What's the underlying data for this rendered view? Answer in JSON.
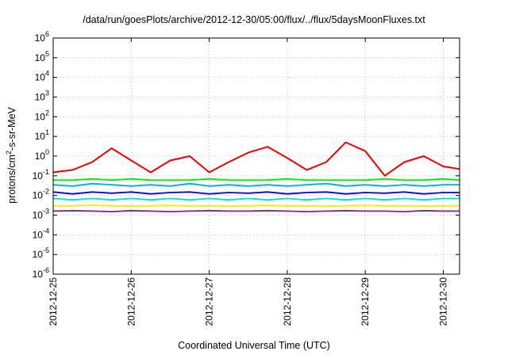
{
  "chart_data": {
    "type": "line",
    "title": "/data/run/goesPlots/archive/2012-12-30/05:00/flux/../flux/5daysMoonFluxes.txt",
    "xlabel": "Coordinated Universal Time (UTC)",
    "ylabel": "protons/cm2-s-sr-MeV",
    "yscale": "log",
    "ylim": [
      1e-06,
      1000000.0
    ],
    "xlim": [
      "2012-12-25T00:00",
      "2012-12-30T05:00"
    ],
    "grid": true,
    "x_ticks": [
      "2012-12-25",
      "2012-12-26",
      "2012-12-27",
      "2012-12-28",
      "2012-12-29",
      "2012-12-30"
    ],
    "y_ticks": [
      {
        "base": "10",
        "exp": "-6"
      },
      {
        "base": "10",
        "exp": "-5"
      },
      {
        "base": "10",
        "exp": "-4"
      },
      {
        "base": "10",
        "exp": "-3"
      },
      {
        "base": "10",
        "exp": "-2"
      },
      {
        "base": "10",
        "exp": "-1"
      },
      {
        "base": "10",
        "exp": "0"
      },
      {
        "base": "10",
        "exp": "1"
      },
      {
        "base": "10",
        "exp": "2"
      },
      {
        "base": "10",
        "exp": "3"
      },
      {
        "base": "10",
        "exp": "4"
      },
      {
        "base": "10",
        "exp": "5"
      },
      {
        "base": "10",
        "exp": "6"
      }
    ],
    "x": [
      "2012-12-25T00:00",
      "2012-12-25T06:00",
      "2012-12-25T12:00",
      "2012-12-25T18:00",
      "2012-12-26T00:00",
      "2012-12-26T06:00",
      "2012-12-26T12:00",
      "2012-12-26T18:00",
      "2012-12-27T00:00",
      "2012-12-27T06:00",
      "2012-12-27T12:00",
      "2012-12-27T18:00",
      "2012-12-28T00:00",
      "2012-12-28T06:00",
      "2012-12-28T12:00",
      "2012-12-28T18:00",
      "2012-12-29T00:00",
      "2012-12-29T06:00",
      "2012-12-29T12:00",
      "2012-12-29T18:00",
      "2012-12-30T00:00",
      "2012-12-30T05:00"
    ],
    "series": [
      {
        "color": "#ee0000",
        "values": [
          0.15,
          0.2,
          0.5,
          2.5,
          0.6,
          0.15,
          0.6,
          1.0,
          0.15,
          0.5,
          1.5,
          3.0,
          0.8,
          0.2,
          0.5,
          5.0,
          1.8,
          0.1,
          0.5,
          1.0,
          0.3,
          0.22
        ]
      },
      {
        "color": "#00ee00",
        "values": [
          0.06,
          0.06,
          0.07,
          0.06,
          0.07,
          0.06,
          0.06,
          0.06,
          0.07,
          0.06,
          0.06,
          0.06,
          0.07,
          0.06,
          0.06,
          0.06,
          0.06,
          0.07,
          0.06,
          0.06,
          0.07,
          0.06
        ]
      },
      {
        "color": "#00aaee",
        "values": [
          0.035,
          0.03,
          0.04,
          0.035,
          0.03,
          0.035,
          0.03,
          0.04,
          0.03,
          0.035,
          0.03,
          0.035,
          0.03,
          0.035,
          0.04,
          0.03,
          0.035,
          0.03,
          0.035,
          0.03,
          0.035,
          0.035
        ]
      },
      {
        "color": "#0000ee",
        "values": [
          0.015,
          0.012,
          0.015,
          0.013,
          0.015,
          0.012,
          0.014,
          0.015,
          0.012,
          0.014,
          0.013,
          0.015,
          0.012,
          0.014,
          0.015,
          0.012,
          0.014,
          0.013,
          0.015,
          0.012,
          0.014,
          0.014
        ]
      },
      {
        "color": "#00dddd",
        "values": [
          0.007,
          0.006,
          0.007,
          0.006,
          0.007,
          0.006,
          0.007,
          0.006,
          0.007,
          0.006,
          0.007,
          0.006,
          0.007,
          0.006,
          0.007,
          0.006,
          0.007,
          0.006,
          0.007,
          0.006,
          0.007,
          0.007
        ]
      },
      {
        "color": "#eeee00",
        "values": [
          0.003,
          0.003,
          0.0032,
          0.003,
          0.0029,
          0.003,
          0.0031,
          0.003,
          0.003,
          0.0029,
          0.003,
          0.0031,
          0.003,
          0.003,
          0.0029,
          0.003,
          0.0031,
          0.003,
          0.003,
          0.0029,
          0.003,
          0.003
        ]
      },
      {
        "color": "#882288",
        "values": [
          0.0016,
          0.0017,
          0.0016,
          0.0015,
          0.0017,
          0.0016,
          0.0015,
          0.0016,
          0.0017,
          0.0016,
          0.0016,
          0.0017,
          0.0016,
          0.0015,
          0.0016,
          0.0017,
          0.0016,
          0.0016,
          0.0015,
          0.0017,
          0.0016,
          0.0016
        ]
      }
    ]
  }
}
